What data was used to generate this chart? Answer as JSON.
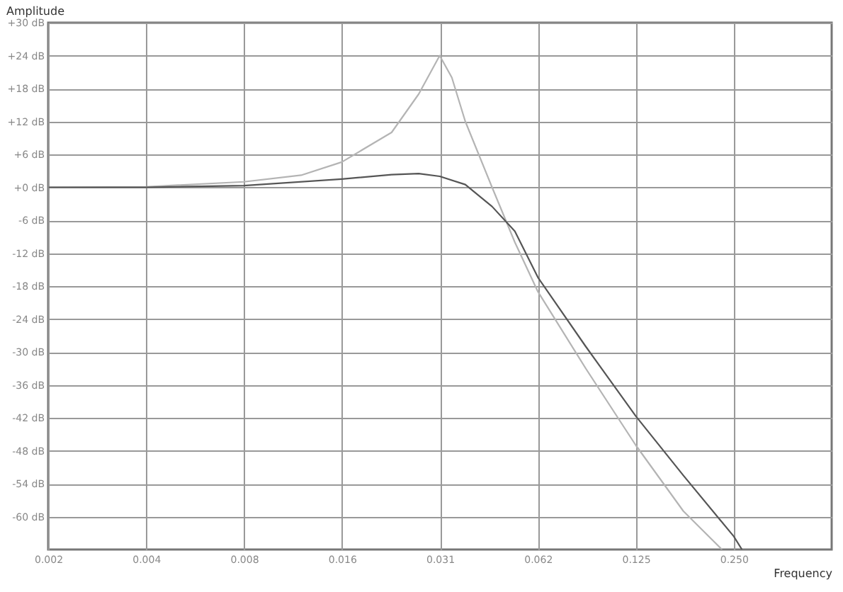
{
  "chart_data": {
    "type": "line",
    "xlabel": "Frequency",
    "ylabel": "Amplitude",
    "log": "x",
    "grid": true,
    "marker": "none",
    "line_style": "solid",
    "xlim": [
      0.001953125,
      0.5
    ],
    "ylim": [
      -66,
      30
    ],
    "xticks": [
      {
        "value": 0.001953125,
        "label": "0.002"
      },
      {
        "value": 0.00390625,
        "label": "0.004"
      },
      {
        "value": 0.0078125,
        "label": "0.008"
      },
      {
        "value": 0.015625,
        "label": "0.016"
      },
      {
        "value": 0.03125,
        "label": "0.031"
      },
      {
        "value": 0.0625,
        "label": "0.062"
      },
      {
        "value": 0.125,
        "label": "0.125"
      },
      {
        "value": 0.25,
        "label": "0.250"
      }
    ],
    "yticks": [
      {
        "value": 30,
        "label": "+30 dB"
      },
      {
        "value": 24,
        "label": "+24 dB"
      },
      {
        "value": 18,
        "label": "+18 dB"
      },
      {
        "value": 12,
        "label": "+12 dB"
      },
      {
        "value": 6,
        "label": "+6 dB"
      },
      {
        "value": 0,
        "label": "+0 dB"
      },
      {
        "value": -6,
        "label": "-6 dB"
      },
      {
        "value": -12,
        "label": "-12 dB"
      },
      {
        "value": -18,
        "label": "-18 dB"
      },
      {
        "value": -24,
        "label": "-24 dB"
      },
      {
        "value": -30,
        "label": "-30 dB"
      },
      {
        "value": -36,
        "label": "-36 dB"
      },
      {
        "value": -42,
        "label": "-42 dB"
      },
      {
        "value": -48,
        "label": "-48 dB"
      },
      {
        "value": -54,
        "label": "-54 dB"
      },
      {
        "value": -60,
        "label": "-60 dB"
      }
    ],
    "series": [
      {
        "color": "#b4b4b4",
        "x": [
          0.00196,
          0.0039,
          0.0078,
          0.0117,
          0.0156,
          0.0222,
          0.0269,
          0.0312,
          0.034,
          0.0374,
          0.0452,
          0.0531,
          0.0625,
          0.0877,
          0.125,
          0.175,
          0.23
        ],
        "values": [
          0,
          0.1,
          1,
          2.2,
          4.6,
          10,
          17,
          24,
          20,
          12,
          0,
          -10,
          -19,
          -33,
          -47,
          -59,
          -66
        ]
      },
      {
        "color": "#555555",
        "x": [
          0.00196,
          0.0039,
          0.0078,
          0.0156,
          0.0222,
          0.0269,
          0.0312,
          0.0374,
          0.0452,
          0.0531,
          0.0625,
          0.0877,
          0.125,
          0.175,
          0.25,
          0.265
        ],
        "values": [
          0,
          0,
          0.3,
          1.5,
          2.3,
          2.5,
          2,
          0.5,
          -3.5,
          -8,
          -16.4,
          -29,
          -41.7,
          -52.5,
          -63.6,
          -66
        ]
      }
    ]
  }
}
